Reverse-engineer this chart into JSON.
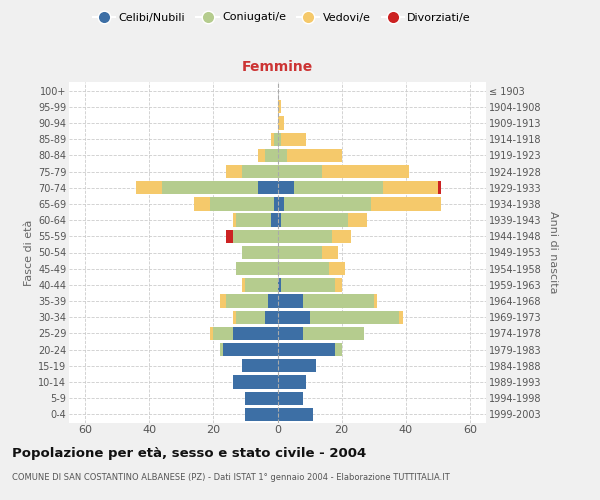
{
  "age_groups": [
    "0-4",
    "5-9",
    "10-14",
    "15-19",
    "20-24",
    "25-29",
    "30-34",
    "35-39",
    "40-44",
    "45-49",
    "50-54",
    "55-59",
    "60-64",
    "65-69",
    "70-74",
    "75-79",
    "80-84",
    "85-89",
    "90-94",
    "95-99",
    "100+"
  ],
  "birth_years": [
    "1999-2003",
    "1994-1998",
    "1989-1993",
    "1984-1988",
    "1979-1983",
    "1974-1978",
    "1969-1973",
    "1964-1968",
    "1959-1963",
    "1954-1958",
    "1949-1953",
    "1944-1948",
    "1939-1943",
    "1934-1938",
    "1929-1933",
    "1924-1928",
    "1919-1923",
    "1914-1918",
    "1909-1913",
    "1904-1908",
    "≤ 1903"
  ],
  "male": {
    "celibi": [
      10,
      10,
      14,
      11,
      17,
      14,
      4,
      3,
      0,
      0,
      0,
      0,
      2,
      1,
      6,
      0,
      0,
      0,
      0,
      0,
      0
    ],
    "coniugati": [
      0,
      0,
      0,
      0,
      1,
      6,
      9,
      13,
      10,
      13,
      11,
      14,
      11,
      20,
      30,
      11,
      4,
      1,
      0,
      0,
      0
    ],
    "vedovi": [
      0,
      0,
      0,
      0,
      0,
      1,
      1,
      2,
      1,
      0,
      0,
      0,
      1,
      5,
      8,
      5,
      2,
      1,
      0,
      0,
      0
    ],
    "divorziati": [
      0,
      0,
      0,
      0,
      0,
      0,
      0,
      0,
      0,
      0,
      0,
      2,
      0,
      0,
      0,
      0,
      0,
      0,
      0,
      0,
      0
    ]
  },
  "female": {
    "nubili": [
      11,
      8,
      9,
      12,
      18,
      8,
      10,
      8,
      1,
      0,
      0,
      0,
      1,
      2,
      5,
      0,
      0,
      0,
      0,
      0,
      0
    ],
    "coniugate": [
      0,
      0,
      0,
      0,
      2,
      19,
      28,
      22,
      17,
      16,
      14,
      17,
      21,
      27,
      28,
      14,
      3,
      1,
      0,
      0,
      0
    ],
    "vedove": [
      0,
      0,
      0,
      0,
      0,
      0,
      1,
      1,
      2,
      5,
      5,
      6,
      6,
      22,
      17,
      27,
      17,
      8,
      2,
      1,
      0
    ],
    "divorziate": [
      0,
      0,
      0,
      0,
      0,
      0,
      0,
      0,
      0,
      0,
      0,
      0,
      0,
      0,
      1,
      0,
      0,
      0,
      0,
      0,
      0
    ]
  },
  "colors": {
    "celibi_nubili": "#3d6fa5",
    "coniugati": "#b5cc8e",
    "vedovi": "#f5c96b",
    "divorziati": "#cc2222"
  },
  "title": "Popolazione per età, sesso e stato civile - 2004",
  "subtitle": "COMUNE DI SAN COSTANTINO ALBANESE (PZ) - Dati ISTAT 1° gennaio 2004 - Elaborazione TUTTITALIA.IT",
  "xlabel_right": "Femmine",
  "ylabel_left": "Fasce di età",
  "ylabel_right": "Anni di nascita",
  "xlim": 65,
  "bg_color": "#f0f0f0",
  "plot_bg": "#ffffff",
  "grid_color": "#cccccc"
}
